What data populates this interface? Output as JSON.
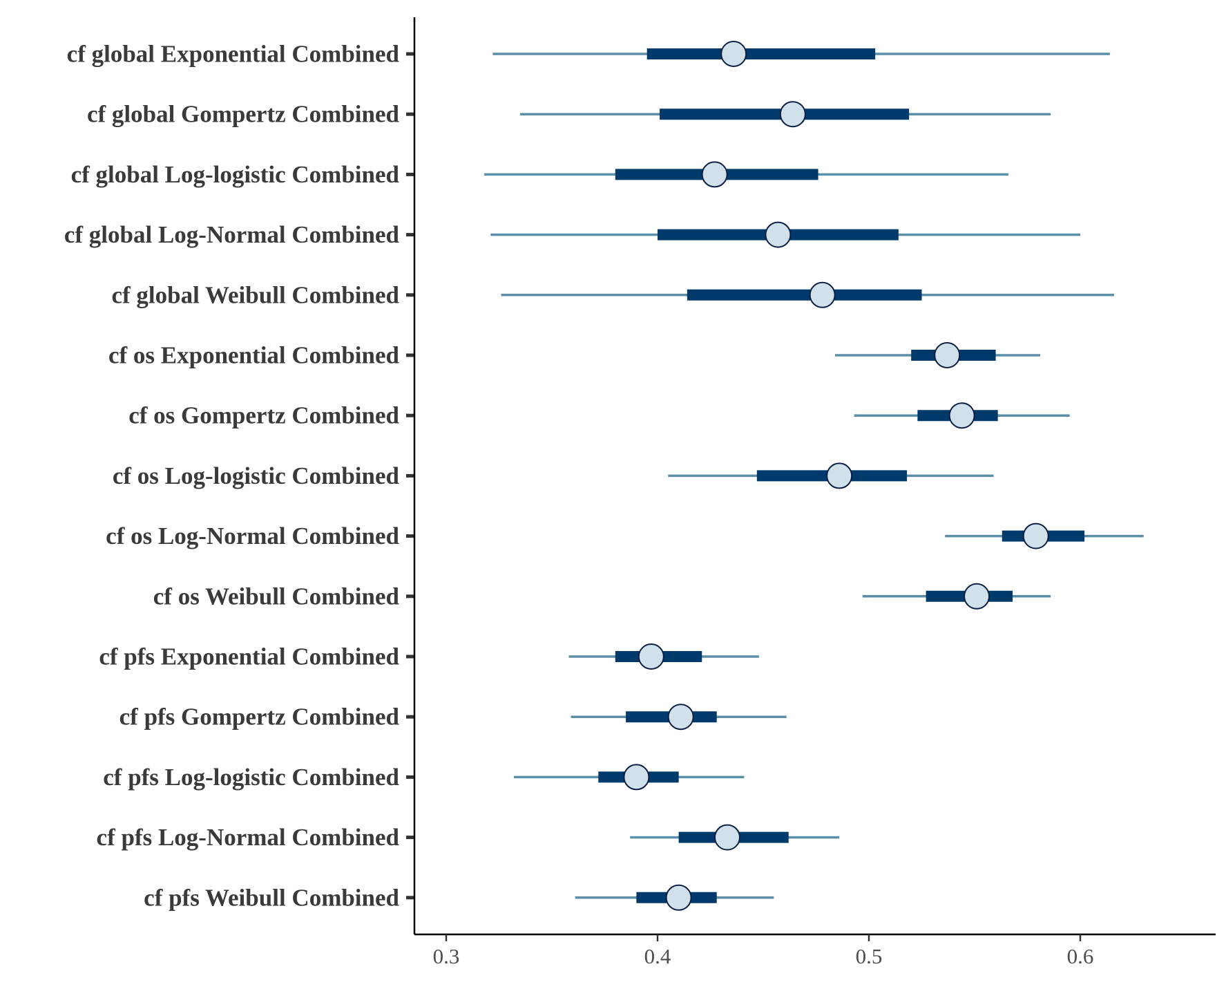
{
  "chart_data": {
    "type": "interval",
    "categories": [
      "cf global Exponential Combined",
      "cf global Gompertz Combined",
      "cf global Log-logistic Combined",
      "cf global Log-Normal Combined",
      "cf global Weibull Combined",
      "cf os Exponential Combined",
      "cf os Gompertz Combined",
      "cf os Log-logistic Combined",
      "cf os Log-Normal Combined",
      "cf os Weibull Combined",
      "cf pfs Exponential Combined",
      "cf pfs Gompertz Combined",
      "cf pfs Log-logistic Combined",
      "cf pfs Log-Normal Combined",
      "cf pfs Weibull Combined"
    ],
    "series": [
      {
        "point": [
          0.436,
          0.464,
          0.427,
          0.457,
          0.478,
          0.537,
          0.544,
          0.486,
          0.579,
          0.551,
          0.397,
          0.411,
          0.39,
          0.433,
          0.41
        ],
        "inner_low": [
          0.395,
          0.401,
          0.38,
          0.4,
          0.414,
          0.52,
          0.523,
          0.447,
          0.563,
          0.527,
          0.38,
          0.385,
          0.372,
          0.41,
          0.39
        ],
        "inner_high": [
          0.503,
          0.519,
          0.476,
          0.514,
          0.525,
          0.56,
          0.561,
          0.518,
          0.602,
          0.568,
          0.421,
          0.428,
          0.41,
          0.462,
          0.428
        ],
        "outer_low": [
          0.322,
          0.335,
          0.318,
          0.321,
          0.326,
          0.484,
          0.493,
          0.405,
          0.536,
          0.497,
          0.358,
          0.359,
          0.332,
          0.387,
          0.361
        ],
        "outer_high": [
          0.614,
          0.586,
          0.566,
          0.6,
          0.616,
          0.581,
          0.595,
          0.559,
          0.63,
          0.586,
          0.448,
          0.461,
          0.441,
          0.486,
          0.455
        ]
      }
    ],
    "xticks": [
      "0.3",
      "0.4",
      "0.5",
      "0.6"
    ],
    "xtick_values": [
      0.3,
      0.4,
      0.5,
      0.6
    ],
    "xlim": [
      0.285,
      0.663
    ],
    "xlabel": "",
    "ylabel": "",
    "title": "",
    "grid": false,
    "legend": "none",
    "colors": {
      "outer_interval": "#5b8fa8",
      "inner_interval": "#003a6b",
      "point_fill": "#d1e1ec",
      "point_stroke": "#0b1f44",
      "axis": "#000000",
      "tick": "#333333"
    }
  }
}
